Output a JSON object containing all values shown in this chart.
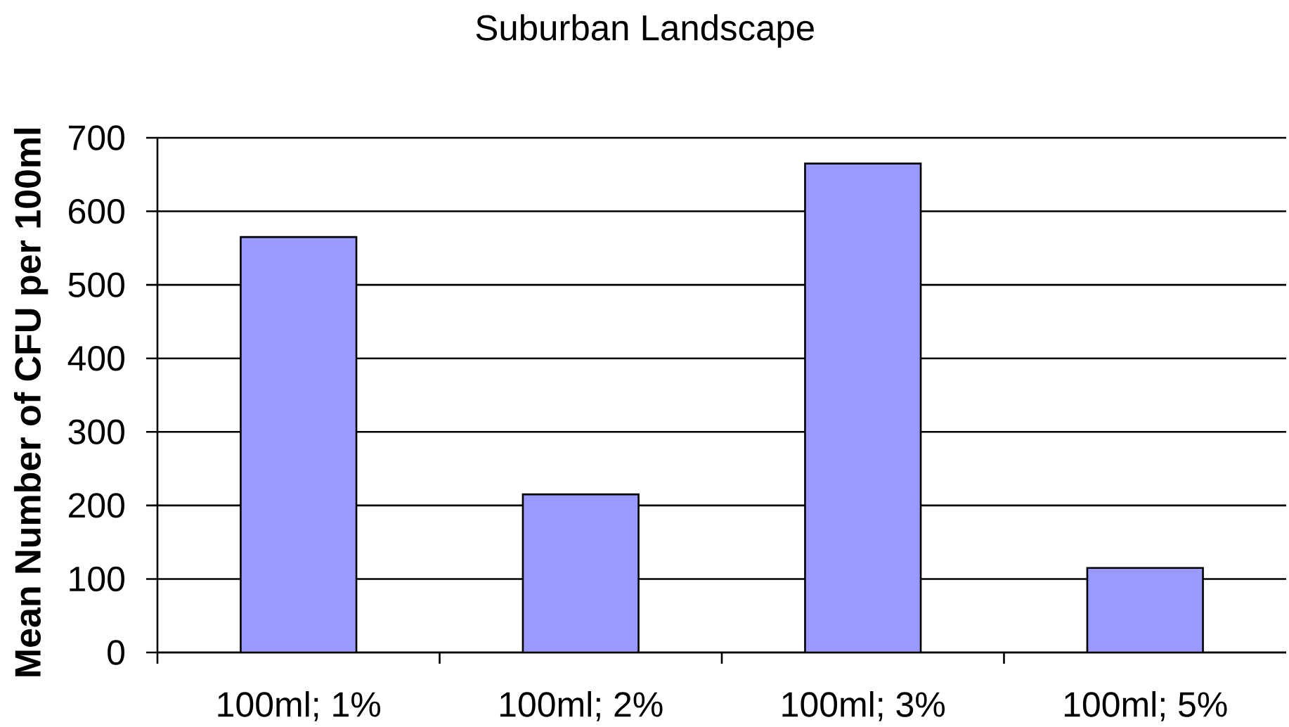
{
  "chart_data": {
    "type": "bar",
    "title": "Suburban Landscape",
    "ylabel": "Mean Number of CFU per 100ml",
    "categories": [
      "100ml; 1%",
      "100ml; 2%",
      "100ml; 3%",
      "100ml; 5%"
    ],
    "values": [
      565,
      215,
      665,
      115
    ],
    "color": "#9999ff",
    "ylim": [
      0,
      700
    ],
    "yticks": [
      0,
      100,
      200,
      300,
      400,
      500,
      600,
      700
    ],
    "grid": "y"
  }
}
